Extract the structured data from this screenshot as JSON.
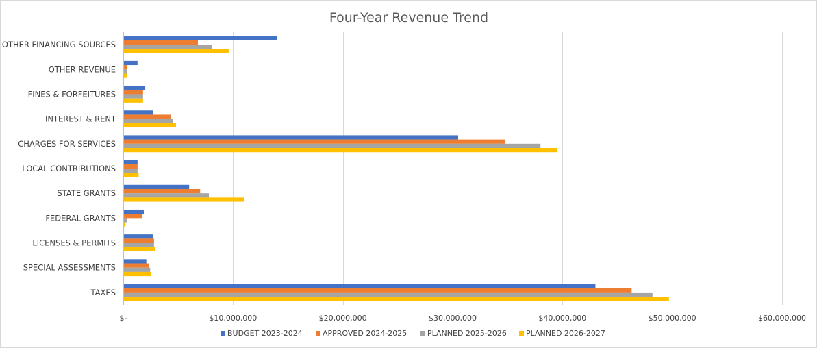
{
  "chart_data": {
    "type": "bar",
    "orientation": "horizontal",
    "title": "Four-Year Revenue Trend",
    "xlabel": "",
    "ylabel": "",
    "xlim": [
      0,
      60000000
    ],
    "grid": true,
    "legend_position": "bottom",
    "x_ticks": [
      0,
      10000000,
      20000000,
      30000000,
      40000000,
      50000000,
      60000000
    ],
    "x_tick_labels": [
      "$-",
      "$10,000,000",
      "$20,000,000",
      "$30,000,000",
      "$40,000,000",
      "$50,000,000",
      "$60,000,000"
    ],
    "categories": [
      "OTHER FINANCING SOURCES",
      "OTHER REVENUE",
      "FINES & FORFEITURES",
      "INTEREST & RENT",
      "CHARGES FOR SERVICES",
      "LOCAL CONTRIBUTIONS",
      "STATE GRANTS",
      "FEDERAL GRANTS",
      "LICENSES & PERMITS",
      "SPECIAL ASSESSMENTS",
      "TAXES"
    ],
    "series": [
      {
        "name": "BUDGET 2023-2024",
        "color": "#4472c4",
        "values": [
          14000000,
          1300000,
          2000000,
          2700000,
          30500000,
          1300000,
          6000000,
          1900000,
          2700000,
          2100000,
          43000000
        ]
      },
      {
        "name": "APPROVED 2024-2025",
        "color": "#ed7d31",
        "values": [
          6800000,
          350000,
          1800000,
          4300000,
          34800000,
          1300000,
          7000000,
          1750000,
          2800000,
          2350000,
          46300000
        ]
      },
      {
        "name": "PLANNED 2025-2026",
        "color": "#a5a5a5",
        "values": [
          8100000,
          350000,
          1800000,
          4500000,
          38000000,
          1300000,
          7800000,
          350000,
          2800000,
          2450000,
          48200000
        ]
      },
      {
        "name": "PLANNED 2026-2027",
        "color": "#ffc000",
        "values": [
          9600000,
          350000,
          1800000,
          4800000,
          39500000,
          1400000,
          11000000,
          200000,
          2900000,
          2500000,
          49700000
        ]
      }
    ]
  }
}
